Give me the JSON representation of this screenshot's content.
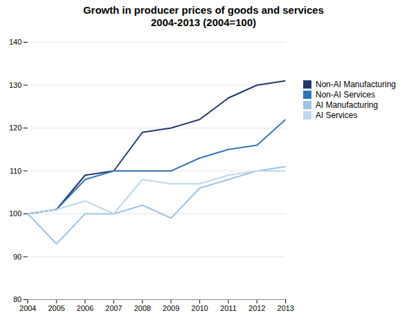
{
  "chart_data": {
    "type": "line",
    "title": "Growth in producer prices of goods and services\n2004-2013 (2004=100)",
    "x": [
      2004,
      2005,
      2006,
      2007,
      2008,
      2009,
      2010,
      2011,
      2012,
      2013
    ],
    "series": [
      {
        "name": "Non-AI Manufacturing",
        "color": "#1F3864",
        "values": [
          100,
          101,
          109,
          110,
          119,
          120,
          122,
          127,
          130,
          131
        ]
      },
      {
        "name": "Non-AI Services",
        "color": "#2E75B6",
        "values": [
          100,
          101,
          108,
          110,
          110,
          110,
          113,
          115,
          116,
          122
        ]
      },
      {
        "name": "AI Manufacturing",
        "color": "#9DC3E6",
        "values": [
          100,
          93,
          100,
          100,
          102,
          99,
          106,
          108,
          110,
          111
        ]
      },
      {
        "name": "AI Services",
        "color": "#BDD7EE",
        "values": [
          100,
          101,
          103,
          100,
          108,
          107,
          107,
          109,
          110,
          110
        ]
      }
    ],
    "xlim": [
      2004,
      2013
    ],
    "ylim": [
      80,
      140
    ],
    "xticks": [
      2004,
      2005,
      2006,
      2007,
      2008,
      2009,
      2010,
      2011,
      2012,
      2013
    ],
    "yticks": [
      80,
      90,
      100,
      110,
      120,
      130,
      140
    ],
    "grid": true,
    "legend": "right"
  }
}
